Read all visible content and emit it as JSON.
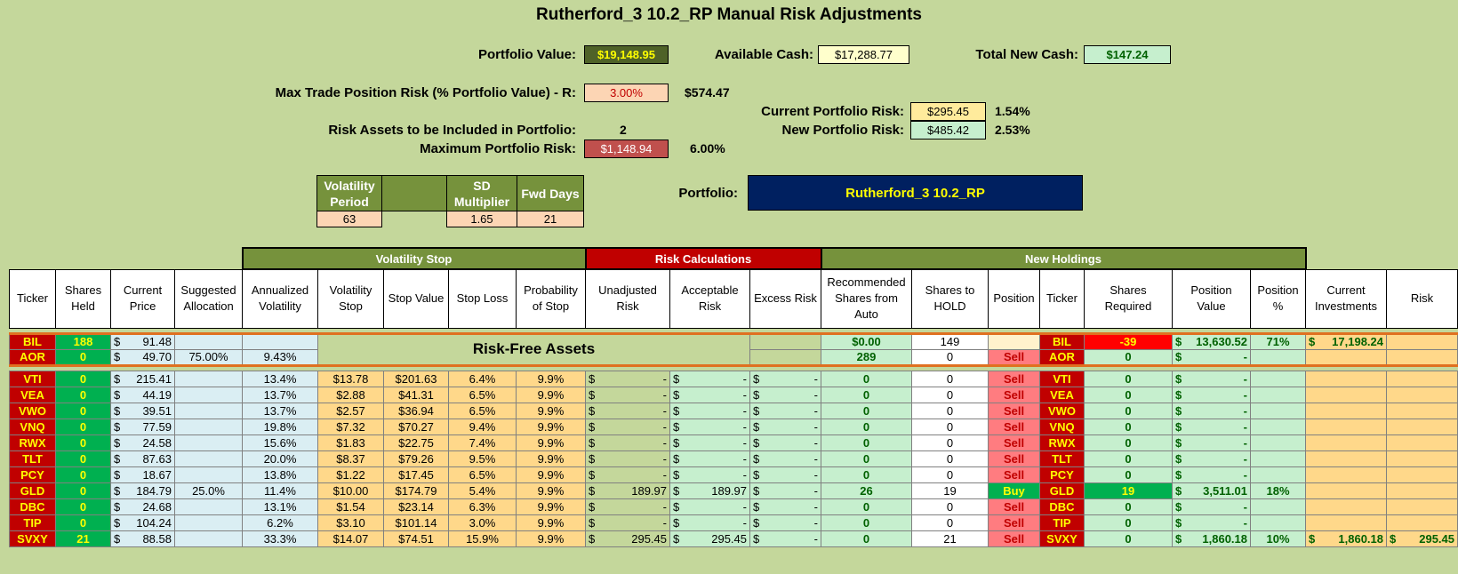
{
  "title": "Rutherford_3 10.2_RP Manual Risk Adjustments",
  "summary": {
    "portfolio_value_label": "Portfolio Value:",
    "portfolio_value": "$19,148.95",
    "available_cash_label": "Available Cash:",
    "available_cash": "$17,288.77",
    "total_new_cash_label": "Total New Cash:",
    "total_new_cash": "$147.24",
    "max_trade_label": "Max Trade Position Risk (% Portfolio Value) - R:",
    "max_trade_pct": "3.00%",
    "max_trade_amount": "$574.47",
    "current_risk_label": "Current Portfolio Risk:",
    "current_risk": "$295.45",
    "current_risk_pct": "1.54%",
    "new_risk_label": "New Portfolio Risk:",
    "new_risk": "$485.42",
    "new_risk_pct": "2.53%",
    "risk_assets_label": "Risk Assets to be Included in Portfolio:",
    "risk_assets": "2",
    "max_portfolio_risk_label": "Maximum Portfolio Risk:",
    "max_portfolio_risk": "$1,148.94",
    "max_portfolio_risk_pct": "6.00%",
    "portfolio_label": "Portfolio:",
    "portfolio_name": "Rutherford_3 10.2_RP"
  },
  "vol_params": {
    "headers": [
      "Volatility Period",
      "",
      "SD Multiplier",
      "Fwd Days"
    ],
    "values": [
      "63",
      "",
      "1.65",
      "21"
    ]
  },
  "groups": {
    "volatility_stop": "Volatility Stop",
    "risk_calculations": "Risk Calculations",
    "new_holdings": "New Holdings"
  },
  "columns": [
    "Ticker",
    "Shares Held",
    "Current Price",
    "Suggested Allocation",
    "Annualized Volatility",
    "Volatility Stop",
    "Stop Value",
    "Stop Loss",
    "Probability of Stop",
    "Unadjusted Risk",
    "Acceptable Risk",
    "Excess Risk",
    "Recommended Shares from Auto",
    "Shares to HOLD",
    "Position",
    "Ticker",
    "Shares Required",
    "Position Value",
    "Position %",
    "Current Investments",
    "Risk"
  ],
  "risk_free_label": "Risk-Free Assets",
  "risk_free_rows": [
    {
      "ticker": "BIL",
      "held": "188",
      "price": "91.48",
      "alloc": "",
      "annvol": "",
      "rec": "$0.00",
      "hold": "149",
      "position": "",
      "ticker2": "BIL",
      "required": "-39",
      "posval": "13,630.52",
      "pospct": "71%",
      "curinv": "17,198.24",
      "risk": ""
    },
    {
      "ticker": "AOR",
      "held": "0",
      "price": "49.70",
      "alloc": "75.00%",
      "annvol": "9.43%",
      "rec": "289",
      "hold": "0",
      "position": "Sell",
      "ticker2": "AOR",
      "required": "0",
      "posval": "-",
      "pospct": "",
      "curinv": "",
      "risk": ""
    }
  ],
  "rows": [
    {
      "ticker": "VTI",
      "held": "0",
      "price": "215.41",
      "alloc": "",
      "annvol": "13.4%",
      "vstop": "$13.78",
      "stopval": "$201.63",
      "stoploss": "6.4%",
      "prob": "9.9%",
      "unadj": "-",
      "accept": "-",
      "excess": "-",
      "rec": "0",
      "hold": "0",
      "position": "Sell",
      "ticker2": "VTI",
      "required": "0",
      "posval": "-",
      "pospct": "",
      "curinv": "",
      "risk": ""
    },
    {
      "ticker": "VEA",
      "held": "0",
      "price": "44.19",
      "alloc": "",
      "annvol": "13.7%",
      "vstop": "$2.88",
      "stopval": "$41.31",
      "stoploss": "6.5%",
      "prob": "9.9%",
      "unadj": "-",
      "accept": "-",
      "excess": "-",
      "rec": "0",
      "hold": "0",
      "position": "Sell",
      "ticker2": "VEA",
      "required": "0",
      "posval": "-",
      "pospct": "",
      "curinv": "",
      "risk": ""
    },
    {
      "ticker": "VWO",
      "held": "0",
      "price": "39.51",
      "alloc": "",
      "annvol": "13.7%",
      "vstop": "$2.57",
      "stopval": "$36.94",
      "stoploss": "6.5%",
      "prob": "9.9%",
      "unadj": "-",
      "accept": "-",
      "excess": "-",
      "rec": "0",
      "hold": "0",
      "position": "Sell",
      "ticker2": "VWO",
      "required": "0",
      "posval": "-",
      "pospct": "",
      "curinv": "",
      "risk": ""
    },
    {
      "ticker": "VNQ",
      "held": "0",
      "price": "77.59",
      "alloc": "",
      "annvol": "19.8%",
      "vstop": "$7.32",
      "stopval": "$70.27",
      "stoploss": "9.4%",
      "prob": "9.9%",
      "unadj": "-",
      "accept": "-",
      "excess": "-",
      "rec": "0",
      "hold": "0",
      "position": "Sell",
      "ticker2": "VNQ",
      "required": "0",
      "posval": "-",
      "pospct": "",
      "curinv": "",
      "risk": ""
    },
    {
      "ticker": "RWX",
      "held": "0",
      "price": "24.58",
      "alloc": "",
      "annvol": "15.6%",
      "vstop": "$1.83",
      "stopval": "$22.75",
      "stoploss": "7.4%",
      "prob": "9.9%",
      "unadj": "-",
      "accept": "-",
      "excess": "-",
      "rec": "0",
      "hold": "0",
      "position": "Sell",
      "ticker2": "RWX",
      "required": "0",
      "posval": "-",
      "pospct": "",
      "curinv": "",
      "risk": ""
    },
    {
      "ticker": "TLT",
      "held": "0",
      "price": "87.63",
      "alloc": "",
      "annvol": "20.0%",
      "vstop": "$8.37",
      "stopval": "$79.26",
      "stoploss": "9.5%",
      "prob": "9.9%",
      "unadj": "-",
      "accept": "-",
      "excess": "-",
      "rec": "0",
      "hold": "0",
      "position": "Sell",
      "ticker2": "TLT",
      "required": "0",
      "posval": "-",
      "pospct": "",
      "curinv": "",
      "risk": ""
    },
    {
      "ticker": "PCY",
      "held": "0",
      "price": "18.67",
      "alloc": "",
      "annvol": "13.8%",
      "vstop": "$1.22",
      "stopval": "$17.45",
      "stoploss": "6.5%",
      "prob": "9.9%",
      "unadj": "-",
      "accept": "-",
      "excess": "-",
      "rec": "0",
      "hold": "0",
      "position": "Sell",
      "ticker2": "PCY",
      "required": "0",
      "posval": "-",
      "pospct": "",
      "curinv": "",
      "risk": ""
    },
    {
      "ticker": "GLD",
      "held": "0",
      "price": "184.79",
      "alloc": "25.0%",
      "annvol": "11.4%",
      "vstop": "$10.00",
      "stopval": "$174.79",
      "stoploss": "5.4%",
      "prob": "9.9%",
      "unadj": "189.97",
      "accept": "189.97",
      "excess": "-",
      "rec": "26",
      "hold": "19",
      "position": "Buy",
      "ticker2": "GLD",
      "required": "19",
      "posval": "3,511.01",
      "pospct": "18%",
      "curinv": "",
      "risk": ""
    },
    {
      "ticker": "DBC",
      "held": "0",
      "price": "24.68",
      "alloc": "",
      "annvol": "13.1%",
      "vstop": "$1.54",
      "stopval": "$23.14",
      "stoploss": "6.3%",
      "prob": "9.9%",
      "unadj": "-",
      "accept": "-",
      "excess": "-",
      "rec": "0",
      "hold": "0",
      "position": "Sell",
      "ticker2": "DBC",
      "required": "0",
      "posval": "-",
      "pospct": "",
      "curinv": "",
      "risk": ""
    },
    {
      "ticker": "TIP",
      "held": "0",
      "price": "104.24",
      "alloc": "",
      "annvol": "6.2%",
      "vstop": "$3.10",
      "stopval": "$101.14",
      "stoploss": "3.0%",
      "prob": "9.9%",
      "unadj": "-",
      "accept": "-",
      "excess": "-",
      "rec": "0",
      "hold": "0",
      "position": "Sell",
      "ticker2": "TIP",
      "required": "0",
      "posval": "-",
      "pospct": "",
      "curinv": "",
      "risk": ""
    },
    {
      "ticker": "SVXY",
      "held": "21",
      "price": "88.58",
      "alloc": "",
      "annvol": "33.3%",
      "vstop": "$14.07",
      "stopval": "$74.51",
      "stoploss": "15.9%",
      "prob": "9.9%",
      "unadj": "295.45",
      "accept": "295.45",
      "excess": "-",
      "rec": "0",
      "hold": "21",
      "position": "Sell",
      "ticker2": "SVXY",
      "required": "0",
      "posval": "1,860.18",
      "pospct": "10%",
      "curinv": "1,860.18",
      "risk": "295.45"
    }
  ],
  "currency_symbol": "$",
  "colors": {
    "background": "#c4d79b",
    "olive_header": "#76923c",
    "risk_header": "#c00000",
    "portfolio_box": "#002060"
  }
}
